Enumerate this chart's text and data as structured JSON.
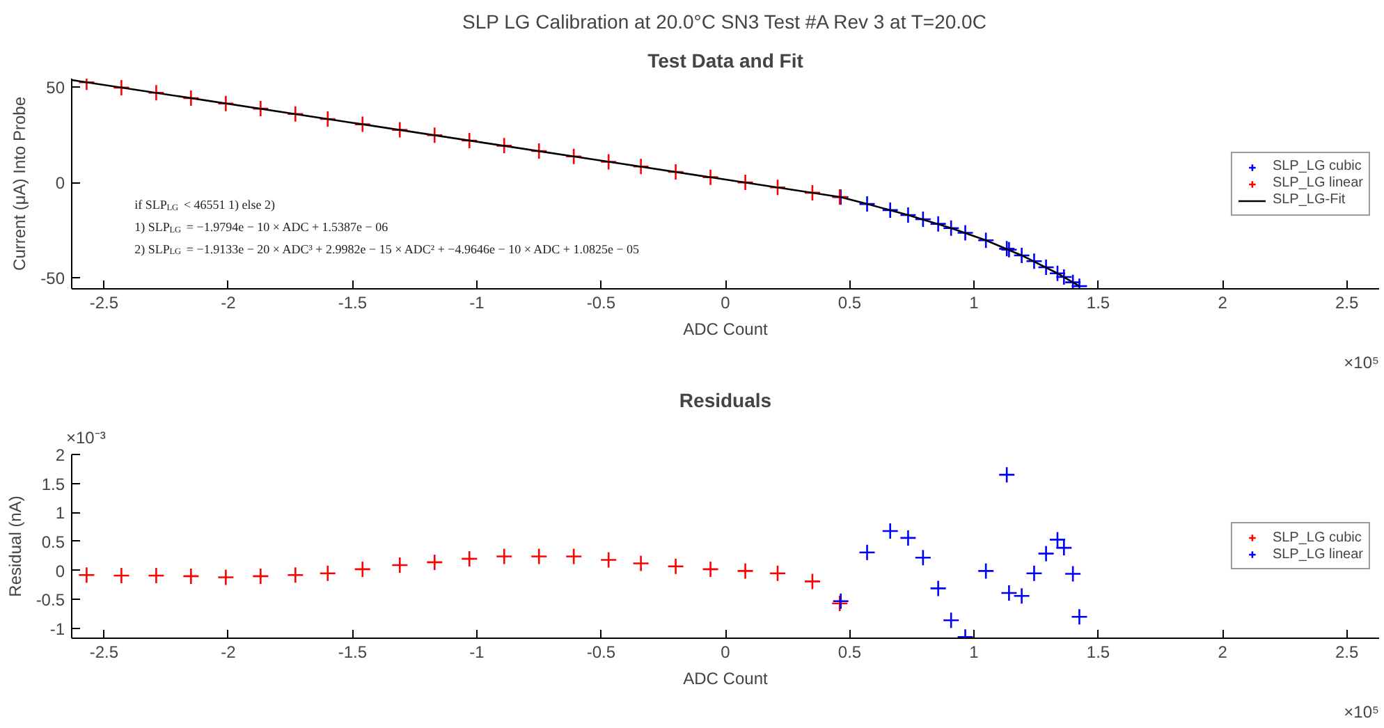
{
  "chart_data": [
    {
      "type": "scatter",
      "title": "SLP LG Calibration at 20.0°C SN3 Test #A Rev 3 at T=20.0C",
      "subtitle": "Test Data and Fit",
      "xlabel": "ADC Count",
      "ylabel": "Current (μA) Into Probe",
      "xlim": [
        -2.63,
        2.63
      ],
      "xticks": [
        -2.5,
        -2,
        -1.5,
        -1,
        -0.5,
        0,
        0.5,
        1,
        1.5,
        2,
        2.5
      ],
      "ylim": [
        -55.7,
        54.3
      ],
      "yticks": [
        -50,
        0,
        50
      ],
      "grid": false,
      "legend": "right",
      "marker": "cross",
      "annotations": [
        "if SLP$_{LG}$ < 46551 1) else 2)",
        "1) SLP$_{LG}$ = −1.9794e − 10 × ADC + 1.5387e − 06",
        "2) SLP$_{LG}$ = −1.9133e − 20 × ADC³ + 2.9982e − 15 × ADC² + −4.9646e − 10 × ADC + 1.0825e − 05",
        "×10⁵"
      ],
      "series": [
        {
          "name": "SLP_LG cubic",
          "color": "#0000ff",
          "x": [
            0.464,
            0.57,
            0.663,
            0.735,
            0.795,
            0.856,
            0.908,
            0.965,
            1.048,
            1.132,
            1.141,
            1.192,
            1.242,
            1.29,
            1.336,
            1.362,
            1.398,
            1.424
          ],
          "values": [
            -7.7,
            -11.3,
            -14.5,
            -17.1,
            -19.3,
            -21.7,
            -23.9,
            -26.4,
            -30.3,
            -34.7,
            -35.2,
            -38.2,
            -41.2,
            -44.4,
            -47.6,
            -49.5,
            -52.3,
            -54.3
          ]
        },
        {
          "name": "SLP_LG linear",
          "color": "#ff0000",
          "x": [
            -2.57,
            -2.43,
            -2.29,
            -2.15,
            -2.01,
            -1.87,
            -1.73,
            -1.6,
            -1.46,
            -1.31,
            -1.17,
            -1.03,
            -0.89,
            -0.75,
            -0.61,
            -0.47,
            -0.34,
            -0.2,
            -0.06,
            0.08,
            0.21,
            0.35,
            0.46
          ],
          "values": [
            52.4,
            49.6,
            46.9,
            44.1,
            41.3,
            38.6,
            35.8,
            33.2,
            30.4,
            27.5,
            24.7,
            21.9,
            19.2,
            16.4,
            13.6,
            10.8,
            8.3,
            5.5,
            2.7,
            0.0,
            -2.6,
            -5.4,
            -7.6
          ]
        },
        {
          "name": "SLP_LG-Fit",
          "type": "line",
          "color": "#000000",
          "marker": "none",
          "line_style": "solid",
          "x": [
            -2.63,
            -1.5,
            -0.5,
            0.464,
            0.57,
            0.735,
            0.908,
            1.048,
            1.192,
            1.336,
            1.424
          ],
          "values": [
            53.6,
            31.2,
            11.4,
            -7.7,
            -11.3,
            -17.1,
            -23.9,
            -30.3,
            -38.2,
            -47.6,
            -54.3
          ]
        }
      ]
    },
    {
      "type": "scatter",
      "title": "Residuals",
      "xlabel": "ADC Count",
      "ylabel": "Residual (nA)",
      "xlim": [
        -2.63,
        2.63
      ],
      "xticks": [
        -2.5,
        -2,
        -1.5,
        -1,
        -0.5,
        0,
        0.5,
        1,
        1.5,
        2,
        2.5
      ],
      "ylim": [
        -1.17,
        2
      ],
      "yticks": [
        -1,
        -0.5,
        0,
        0.5,
        1,
        1.5,
        2
      ],
      "grid": false,
      "legend": "right",
      "marker": "cross",
      "annotations": [
        "×10⁻³",
        "×10⁵"
      ],
      "series": [
        {
          "name": "SLP_LG cubic",
          "color": "#ff0000",
          "x": [
            -2.57,
            -2.43,
            -2.29,
            -2.15,
            -2.01,
            -1.87,
            -1.73,
            -1.6,
            -1.46,
            -1.31,
            -1.17,
            -1.03,
            -0.89,
            -0.75,
            -0.61,
            -0.47,
            -0.34,
            -0.2,
            -0.06,
            0.08,
            0.21,
            0.35,
            0.46
          ],
          "values": [
            -0.08,
            -0.09,
            -0.09,
            -0.1,
            -0.12,
            -0.1,
            -0.08,
            -0.05,
            0.02,
            0.09,
            0.14,
            0.2,
            0.24,
            0.24,
            0.24,
            0.18,
            0.12,
            0.07,
            0.02,
            -0.01,
            -0.05,
            -0.19,
            -0.57
          ]
        },
        {
          "name": "SLP_LG linear",
          "color": "#0000ff",
          "x": [
            0.464,
            0.57,
            0.663,
            0.735,
            0.795,
            0.856,
            0.908,
            0.965,
            1.048,
            1.132,
            1.141,
            1.192,
            1.242,
            1.29,
            1.336,
            1.362,
            1.398,
            1.424
          ],
          "values": [
            -0.53,
            0.31,
            0.68,
            0.56,
            0.22,
            -0.31,
            -0.86,
            -1.15,
            -0.01,
            1.65,
            -0.39,
            -0.44,
            -0.05,
            0.29,
            0.53,
            0.39,
            -0.06,
            -0.8
          ]
        }
      ]
    }
  ]
}
